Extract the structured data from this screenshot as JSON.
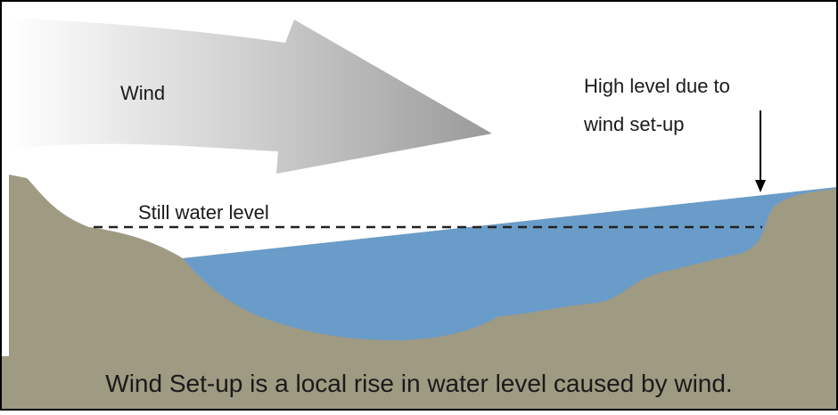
{
  "labels": {
    "wind": "Wind",
    "high_level": [
      "High level due to",
      "wind set-up"
    ],
    "still_water_level": "Still water level"
  },
  "caption": "Wind Set-up is a local rise in water level caused by wind."
}
